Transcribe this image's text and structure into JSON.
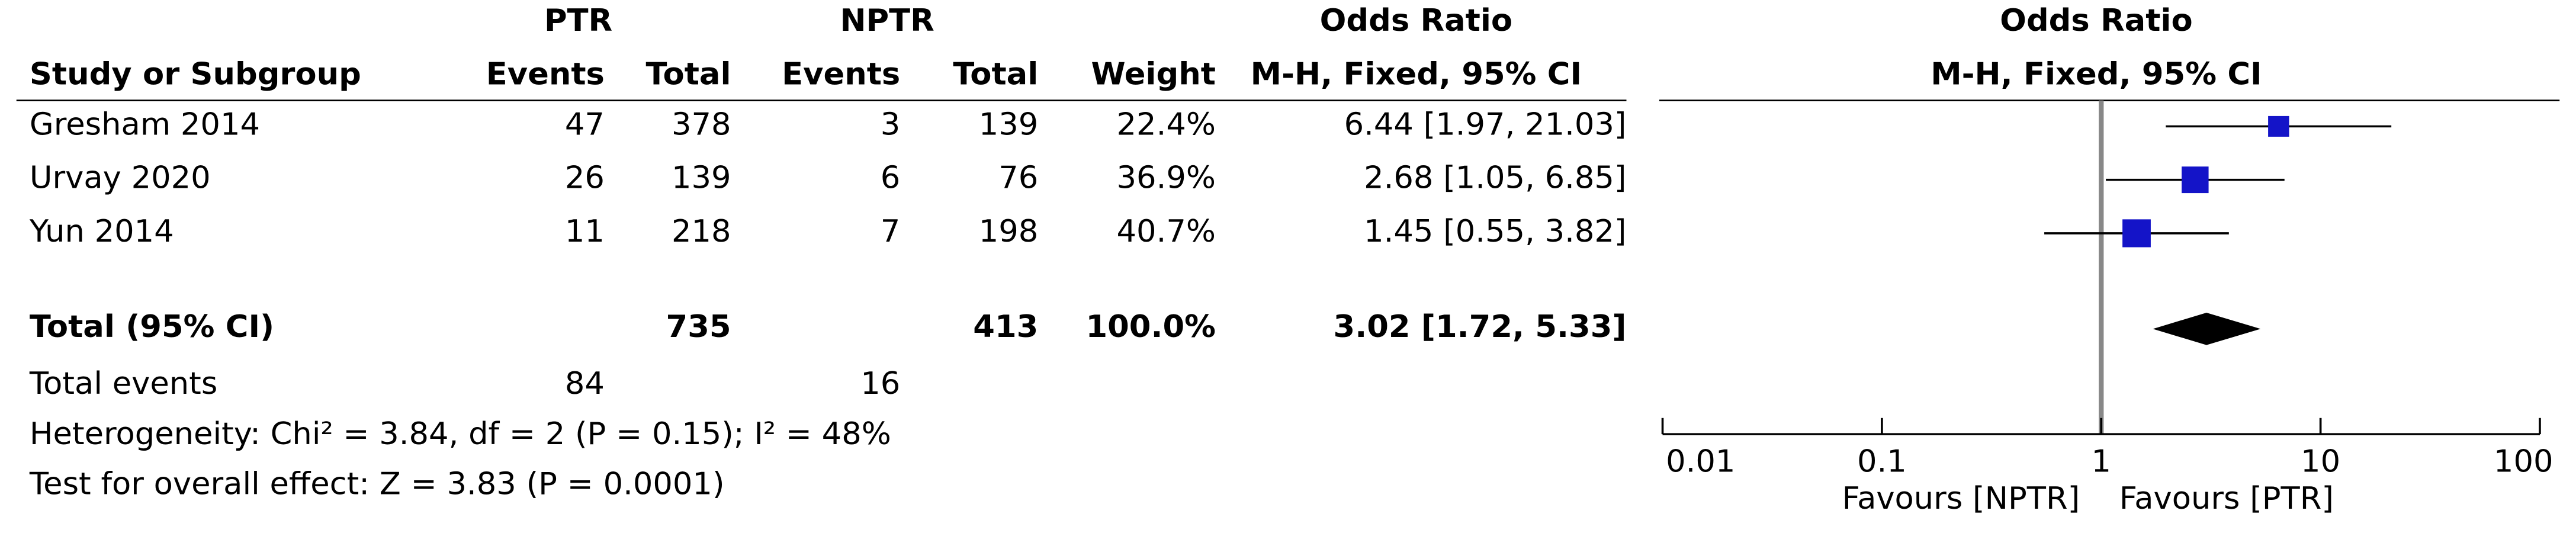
{
  "chart_data": {
    "type": "forest",
    "group_headers": {
      "ptr": "PTR",
      "nptr": "NPTR",
      "or": "Odds Ratio"
    },
    "columns": {
      "study": "Study or Subgroup",
      "ptr_events": "Events",
      "ptr_total": "Total",
      "nptr_events": "Events",
      "nptr_total": "Total",
      "weight": "Weight",
      "or": "M-H, Fixed, 95% CI"
    },
    "plot_title": "Odds Ratio",
    "plot_subtitle": "M-H, Fixed, 95% CI",
    "studies": [
      {
        "name": "Gresham 2014",
        "ptr_events": 47,
        "ptr_total": 378,
        "nptr_events": 3,
        "nptr_total": 139,
        "weight": 22.4,
        "weight_label": "22.4%",
        "or": 6.44,
        "ci_low": 1.97,
        "ci_high": 21.03,
        "or_label": "6.44 [1.97, 21.03]"
      },
      {
        "name": "Urvay 2020",
        "ptr_events": 26,
        "ptr_total": 139,
        "nptr_events": 6,
        "nptr_total": 76,
        "weight": 36.9,
        "weight_label": "36.9%",
        "or": 2.68,
        "ci_low": 1.05,
        "ci_high": 6.85,
        "or_label": "2.68 [1.05, 6.85]"
      },
      {
        "name": "Yun 2014",
        "ptr_events": 11,
        "ptr_total": 218,
        "nptr_events": 7,
        "nptr_total": 198,
        "weight": 40.7,
        "weight_label": "40.7%",
        "or": 1.45,
        "ci_low": 0.55,
        "ci_high": 3.82,
        "or_label": "1.45 [0.55, 3.82]"
      }
    ],
    "total": {
      "name": "Total (95% CI)",
      "ptr_total": 735,
      "nptr_total": 413,
      "weight": 100.0,
      "weight_label": "100.0%",
      "or": 3.02,
      "ci_low": 1.72,
      "ci_high": 5.33,
      "or_label": "3.02 [1.72, 5.33]"
    },
    "total_events": {
      "name": "Total events",
      "ptr": 84,
      "nptr": 16
    },
    "heterogeneity": "Heterogeneity: Chi² = 3.84, df = 2 (P = 0.15); I² = 48%",
    "overall_effect": "Test for overall effect: Z = 3.83 (P = 0.0001)",
    "log_scale": true,
    "xlim": [
      0.01,
      100
    ],
    "xticks": [
      0.01,
      0.1,
      1,
      10,
      100
    ],
    "reference": 1,
    "favours_left": "Favours [NPTR]",
    "favours_right": "Favours [PTR]",
    "square_color": "#1414c8",
    "diamond_color": "#000000"
  }
}
